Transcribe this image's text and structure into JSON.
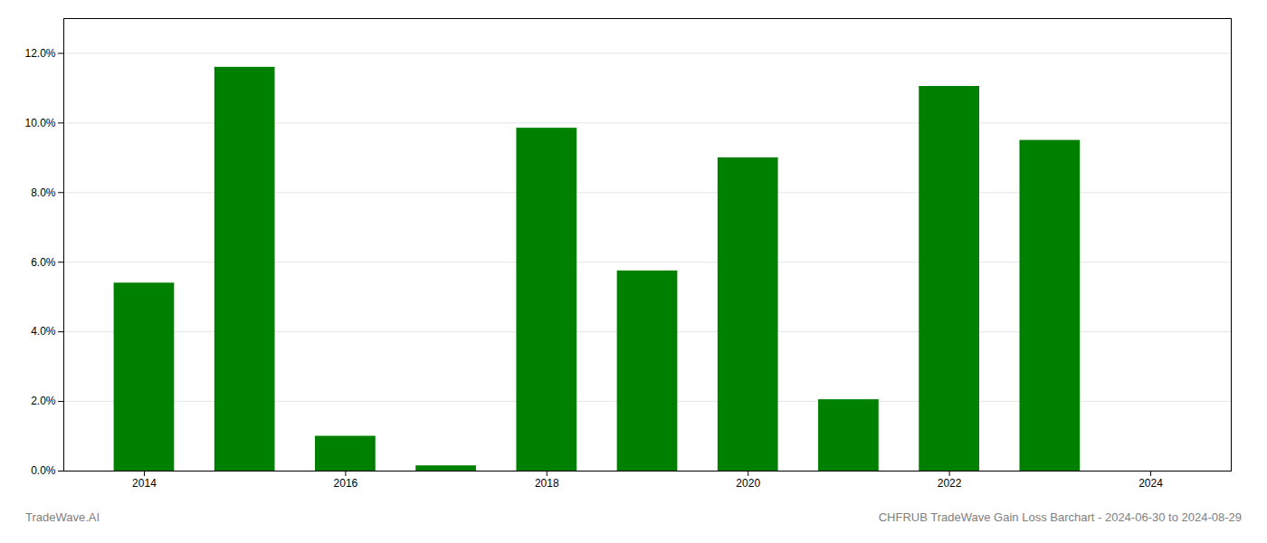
{
  "chart_data": {
    "type": "bar",
    "x": [
      2014,
      2015,
      2016,
      2017,
      2018,
      2019,
      2020,
      2021,
      2022,
      2023
    ],
    "values": [
      0.054,
      0.116,
      0.01,
      0.0015,
      0.0985,
      0.0575,
      0.09,
      0.0205,
      0.1105,
      0.095
    ],
    "color": "#008000",
    "xlim": [
      2013.2,
      2024.8
    ],
    "xticks": [
      2014,
      2016,
      2018,
      2020,
      2022,
      2024
    ],
    "ylim": [
      0,
      0.13
    ],
    "yticks": [
      {
        "value": 0.0,
        "label": "0.0%"
      },
      {
        "value": 0.02,
        "label": "2.0%"
      },
      {
        "value": 0.04,
        "label": "4.0%"
      },
      {
        "value": 0.06,
        "label": "6.0%"
      },
      {
        "value": 0.08,
        "label": "8.0%"
      },
      {
        "value": 0.1,
        "label": "10.0%"
      },
      {
        "value": 0.12,
        "label": "12.0%"
      }
    ],
    "grid": true,
    "annotations": [
      "TradeWave.AI",
      "CHFRUB TradeWave Gain Loss Barchart - 2024-06-30 to 2024-08-29"
    ]
  }
}
